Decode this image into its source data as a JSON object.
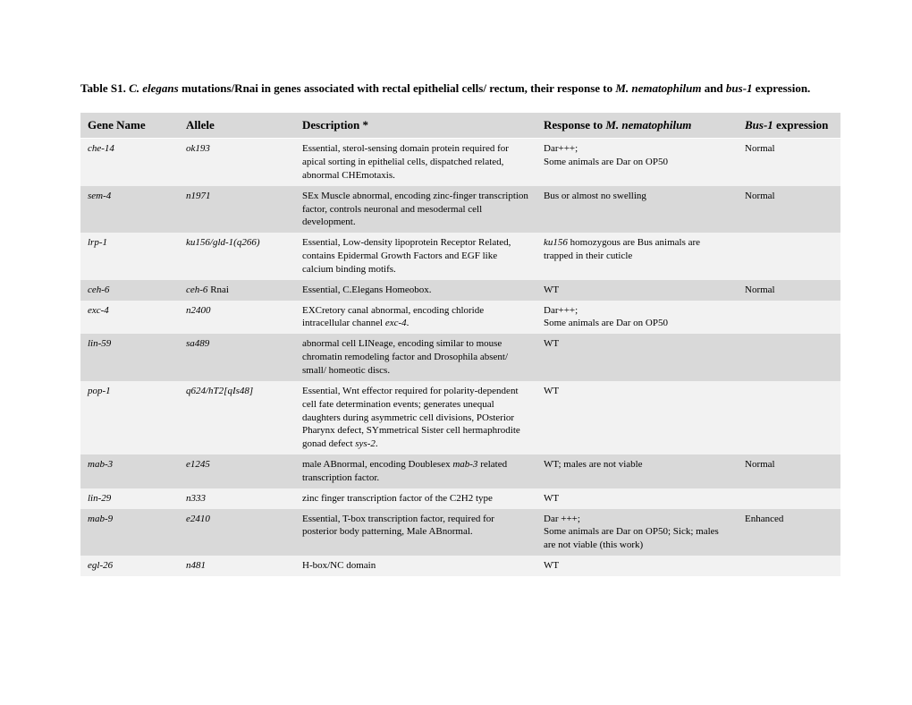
{
  "title_parts": {
    "p1": "Table S1.  ",
    "p2": "C. elegans",
    "p3": " mutations/Rnai in genes associated with rectal epithelial cells/ rectum, their response to ",
    "p4": "M. nematophilum",
    "p5": " and ",
    "p6": "bus-1",
    "p7": " expression."
  },
  "headers": {
    "gene": "Gene Name",
    "allele": "Allele",
    "description": "Description *",
    "response_pre": "Response to ",
    "response_italic": "M. nematophilum",
    "bus_italic": "Bus-1",
    "bus_post": " expression"
  },
  "colors": {
    "header_bg": "#d9d9d9",
    "row_dark": "#d9d9d9",
    "row_light": "#f2f2f2",
    "text": "#000000",
    "background": "#ffffff"
  },
  "column_widths": {
    "gene": 110,
    "allele": 130,
    "description": 270,
    "response": 225,
    "bus": 115
  },
  "font_sizes": {
    "title": 13,
    "header": 13,
    "body": 11
  },
  "rows": [
    {
      "shade": "light",
      "gene": "che-14",
      "allele": " ok193",
      "description": "Essential, sterol-sensing domain protein required for apical sorting in epithelial cells, dispatched related, abnormal CHEmotaxis.",
      "response": "Dar+++;\nSome animals are Dar on OP50",
      "bus": "Normal"
    },
    {
      "shade": "dark",
      "gene": "sem-4",
      "allele": "n1971",
      "description": "SEx Muscle abnormal, encoding zinc-finger transcription factor, controls neuronal and mesodermal cell development.",
      "response": "Bus  or almost no swelling",
      "bus": "Normal"
    },
    {
      "shade": "light",
      "gene": "lrp-1",
      "allele": "ku156/gld-1(q266)",
      "description": "Essential, Low-density lipoprotein Receptor Related, contains Epidermal Growth Factors and EGF like calcium binding motifs.",
      "response_html": true,
      "response_parts": [
        {
          "italic": true,
          "text": "ku156"
        },
        {
          "italic": false,
          "text": " homozygous are Bus animals are trapped in their cuticle"
        }
      ],
      "bus": ""
    },
    {
      "shade": "dark",
      "gene": "ceh-6",
      "allele_html": true,
      "allele_parts": [
        {
          "italic": true,
          "text": "ceh-6"
        },
        {
          "italic": false,
          "text": " Rnai"
        }
      ],
      "description": "Essential, C.Elegans Homeobox.",
      "response": "WT",
      "bus": "Normal"
    },
    {
      "shade": "light",
      "gene": "exc-4",
      "allele": "n2400",
      "description_html": true,
      "description_parts": [
        {
          "italic": false,
          "text": "EXCretory canal abnormal, encoding chloride intracellular channel "
        },
        {
          "italic": true,
          "text": "exc-4"
        },
        {
          "italic": false,
          "text": "."
        }
      ],
      "response": "Dar+++;\nSome animals are Dar on OP50",
      "bus": ""
    },
    {
      "shade": "dark",
      "gene": "lin-59",
      "allele": " sa489",
      "description": "abnormal cell LINeage, encoding similar to mouse chromatin remodeling factor and Drosophila absent/ small/ homeotic discs.",
      "response": " WT",
      "bus": ""
    },
    {
      "shade": "light",
      "gene": "pop-1",
      "allele": "q624/hT2[qIs48]",
      "description_html": true,
      "description_parts": [
        {
          "italic": false,
          "text": "Essential, Wnt effector required for polarity-dependent cell fate determination events; generates unequal daughters during asymmetric cell divisions, POsterior Pharynx defect, SYmmetrical Sister cell hermaphrodite gonad defect "
        },
        {
          "italic": true,
          "text": "sys-2"
        },
        {
          "italic": false,
          "text": "."
        }
      ],
      "response": "WT",
      "bus": ""
    },
    {
      "shade": "dark",
      "gene": "mab-3",
      "allele": "e1245",
      "description_html": true,
      "description_parts": [
        {
          "italic": false,
          "text": "male ABnormal, encoding Doublesex "
        },
        {
          "italic": true,
          "text": "mab-3"
        },
        {
          "italic": false,
          "text": " related transcription factor."
        }
      ],
      "response": "WT; males are not viable",
      "bus": "Normal"
    },
    {
      "shade": "light",
      "gene": "lin-29",
      "allele": "n333",
      "description": "zinc finger transcription factor of the C2H2 type",
      "response": "WT",
      "bus": ""
    },
    {
      "shade": "dark",
      "gene": "mab-9",
      "allele": "e2410",
      "description": "Essential, T-box transcription factor, required for posterior body patterning, Male ABnormal.",
      "response": "Dar +++;\nSome animals are Dar on OP50; Sick; males are not viable (this work)",
      "bus": "Enhanced"
    },
    {
      "shade": "light",
      "gene": "egl-26",
      "allele": "n481",
      "description": "H-box/NC domain",
      "response": "WT",
      "bus": ""
    }
  ]
}
